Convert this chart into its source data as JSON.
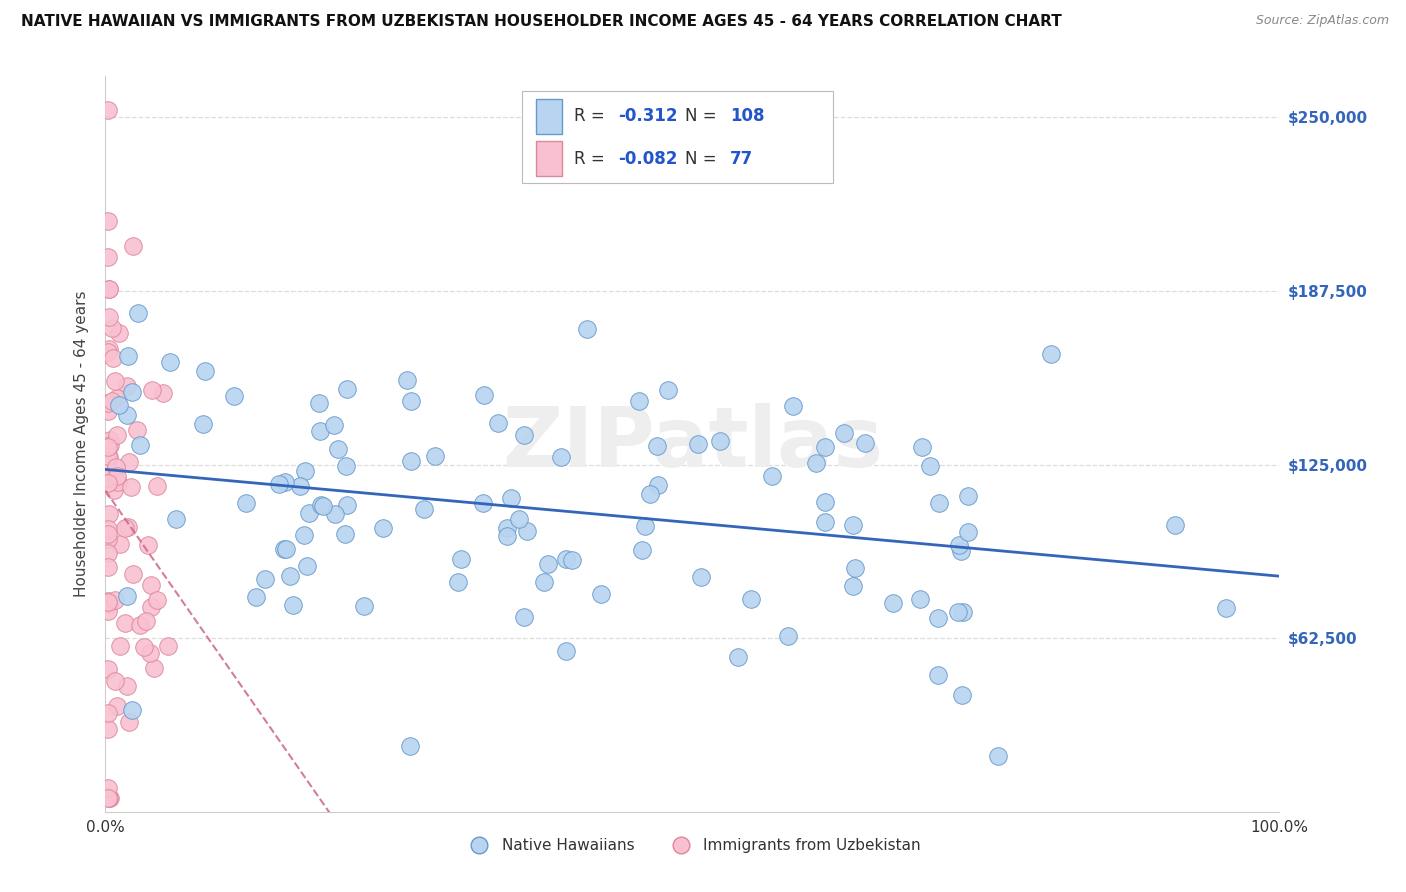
{
  "title": "NATIVE HAWAIIAN VS IMMIGRANTS FROM UZBEKISTAN HOUSEHOLDER INCOME AGES 45 - 64 YEARS CORRELATION CHART",
  "source": "Source: ZipAtlas.com",
  "ylabel": "Householder Income Ages 45 - 64 years",
  "yticks": [
    0,
    62500,
    125000,
    187500,
    250000
  ],
  "ytick_labels": [
    "",
    "$62,500",
    "$125,000",
    "$187,500",
    "$250,000"
  ],
  "ylim_max": 265000,
  "xlim": [
    0.0,
    1.0
  ],
  "series1_label": "Native Hawaiians",
  "series1_color": "#b8d4f0",
  "series1_edge_color": "#6699cc",
  "series1_line_color": "#3366bb",
  "series1_R": -0.312,
  "series1_N": 108,
  "series2_label": "Immigrants from Uzbekistan",
  "series2_color": "#f8c0d0",
  "series2_edge_color": "#dd8899",
  "series2_line_color": "#cc6688",
  "series2_R": -0.082,
  "series2_N": 77,
  "background_color": "#ffffff",
  "grid_color": "#dddddd",
  "watermark_text": "ZIPatlas",
  "watermark_color": "#eeeeee",
  "title_color": "#111111",
  "source_color": "#888888",
  "ylabel_color": "#444444",
  "right_tick_color": "#3366bb",
  "bottom_tick_color": "#333333"
}
